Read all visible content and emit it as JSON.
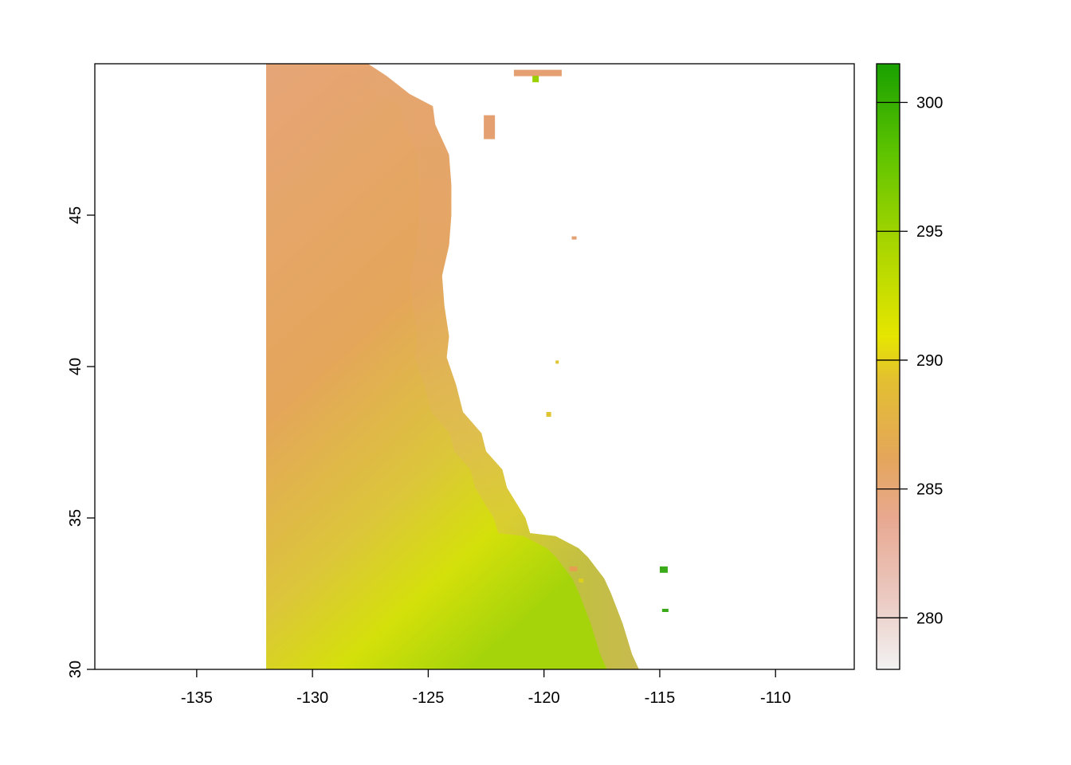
{
  "map": {
    "type": "raster",
    "x_axis": {
      "range": [
        -139.4,
        -106.6
      ],
      "ticks": [
        -135,
        -130,
        -125,
        -120,
        -115,
        -110
      ],
      "tick_labels": [
        "-135",
        "-130",
        "-125",
        "-120",
        "-115",
        "-110"
      ]
    },
    "y_axis": {
      "range": [
        30,
        50
      ],
      "ticks": [
        30,
        35,
        40,
        45
      ],
      "tick_labels": [
        "30",
        "35",
        "40",
        "45"
      ]
    },
    "raster_west_edge_lon": -132,
    "coastline": [
      [
        -127.6,
        50
      ],
      [
        -126.8,
        49.6
      ],
      [
        -125.8,
        49.0
      ],
      [
        -124.8,
        48.6
      ],
      [
        -124.7,
        48.0
      ],
      [
        -124.1,
        47.0
      ],
      [
        -124.0,
        46.0
      ],
      [
        -124.0,
        45.0
      ],
      [
        -124.1,
        44.0
      ],
      [
        -124.4,
        43.0
      ],
      [
        -124.3,
        42.0
      ],
      [
        -124.1,
        41.0
      ],
      [
        -124.2,
        40.3
      ],
      [
        -123.8,
        39.4
      ],
      [
        -123.5,
        38.5
      ],
      [
        -122.7,
        37.8
      ],
      [
        -122.5,
        37.2
      ],
      [
        -121.8,
        36.6
      ],
      [
        -121.6,
        36.0
      ],
      [
        -120.8,
        35.0
      ],
      [
        -120.6,
        34.5
      ],
      [
        -119.5,
        34.4
      ],
      [
        -118.5,
        34.0
      ],
      [
        -118.1,
        33.7
      ],
      [
        -117.4,
        33.0
      ],
      [
        -117.1,
        32.5
      ],
      [
        -116.6,
        31.5
      ],
      [
        -116.2,
        30.5
      ],
      [
        -115.9,
        30.0
      ]
    ],
    "legend": {
      "range": [
        278,
        301.5
      ],
      "ticks": [
        280,
        285,
        290,
        295,
        300
      ],
      "tick_labels": [
        "280",
        "285",
        "290",
        "295",
        "300"
      ],
      "colors": [
        "#f2f2f2",
        "#e8b6a8",
        "#e4a26a",
        "#e3b93a",
        "#e6e600",
        "#a9d600",
        "#5fc400",
        "#19a000"
      ]
    }
  }
}
